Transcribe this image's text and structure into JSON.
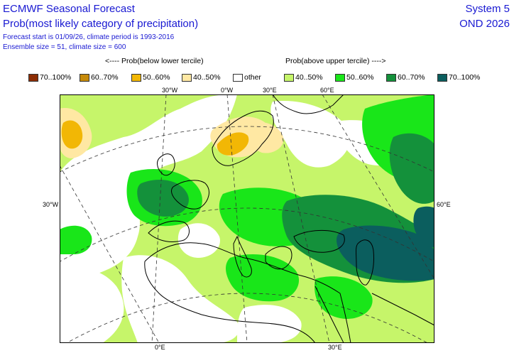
{
  "header": {
    "title": "ECMWF Seasonal Forecast",
    "subtitle": "Prob(most likely category of precipitation)",
    "info_line1": "Forecast start is 01/09/26, climate period is 1993-2016",
    "info_line2": "Ensemble size = 51, climate size = 600",
    "system": "System 5",
    "season": "OND 2026"
  },
  "legend": {
    "caption_below": "<---- Prob(below lower tercile)",
    "caption_above": "Prob(above upper tercile) ---->",
    "items": [
      {
        "label": "70..100%",
        "color": "#8c2d04"
      },
      {
        "label": "60..70%",
        "color": "#c68a0a"
      },
      {
        "label": "50..60%",
        "color": "#f2b705"
      },
      {
        "label": "40..50%",
        "color": "#ffe8a3"
      },
      {
        "label": "other",
        "color": "#ffffff"
      },
      {
        "label": "40..50%",
        "color": "#c6f56a"
      },
      {
        "label": "50..60%",
        "color": "#19e619"
      },
      {
        "label": "60..70%",
        "color": "#14913b"
      },
      {
        "label": "70..100%",
        "color": "#0b5e5e"
      }
    ]
  },
  "axes": {
    "top_ticks": [
      "30°W",
      "0°W",
      "30°E",
      "60°E"
    ],
    "left_tick": "30°W",
    "right_tick": "60°E",
    "bottom_ticks": [
      "0°E",
      "30°E"
    ]
  }
}
